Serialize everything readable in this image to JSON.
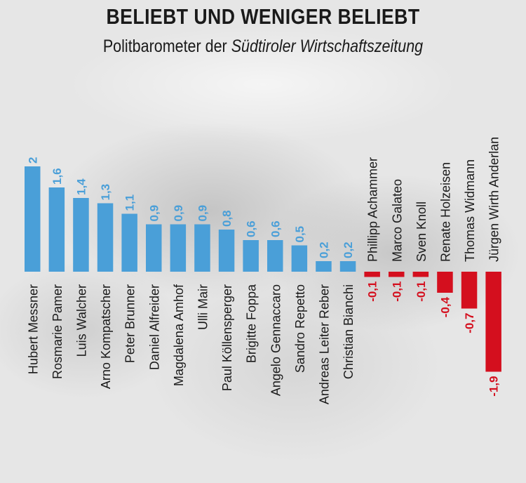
{
  "header": {
    "title": "BELIEBT UND WENIGER BELIEBT",
    "subtitle_prefix": "Politbarometer der ",
    "subtitle_source": "Südtiroler Wirtschaftszeitung"
  },
  "colors": {
    "positive": "#4a9fd8",
    "negative": "#d40f1e",
    "label": "#1a1a1a"
  },
  "chart_data": {
    "type": "bar",
    "title": "BELIEBT UND WENIGER BELIEBT",
    "subtitle": "Politbarometer der Südtiroler Wirtschaftszeitung",
    "xlabel": "",
    "ylabel": "",
    "categories": [
      "Hubert Messner",
      "Rosmarie Pamer",
      "Luis Walcher",
      "Arno Kompatscher",
      "Peter Brunner",
      "Daniel Alfreider",
      "Magdalena Amhof",
      "Ulli Mair",
      "Paul Köllensperger",
      "Brigitte Foppa",
      "Angelo Gennaccaro",
      "Sandro Repetto",
      "Andreas Leiter Reber",
      "Christian Bianchi",
      "Phillipp Achammer",
      "Marco Galateo",
      "Sven Knoll",
      "Renate Holzeisen",
      "Thomas Widmann",
      "Jürgen Wirth Anderlan"
    ],
    "values": [
      2,
      1.6,
      1.4,
      1.3,
      1.1,
      0.9,
      0.9,
      0.9,
      0.8,
      0.6,
      0.6,
      0.5,
      0.2,
      0.2,
      -0.1,
      -0.1,
      -0.1,
      -0.4,
      -0.7,
      -1.9
    ],
    "value_labels": [
      "2",
      "1,6",
      "1,4",
      "1,3",
      "1,1",
      "0,9",
      "0,9",
      "0,9",
      "0,8",
      "0,6",
      "0,6",
      "0,5",
      "0,2",
      "0,2",
      "-0,1",
      "-0,1",
      "-0,1",
      "-0,4",
      "-0,7",
      "-1,9"
    ],
    "grid": false,
    "legend": "none"
  }
}
